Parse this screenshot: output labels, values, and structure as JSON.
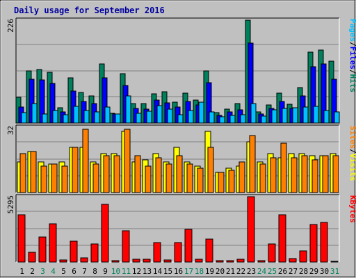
{
  "chart_data": {
    "type": "bar",
    "title": "Daily usage for September 2016",
    "x": [
      "1",
      "2",
      "3",
      "4",
      "5",
      "6",
      "7",
      "8",
      "9",
      "10",
      "11",
      "12",
      "13",
      "14",
      "15",
      "16",
      "17",
      "18",
      "19",
      "20",
      "21",
      "22",
      "23",
      "24",
      "25",
      "26",
      "27",
      "28",
      "29",
      "30",
      "31"
    ],
    "weekend_days": [
      "3",
      "4",
      "10",
      "11",
      "17",
      "18",
      "24",
      "25",
      "31"
    ],
    "colors": {
      "hits": "#00805c",
      "files": "#0000ff",
      "pages": "#00c0ff",
      "visits": "#ffff00",
      "sites": "#ff8000",
      "kbytes": "#ff0000",
      "weekday_label": "#000000",
      "weekend_label": "#00805c"
    },
    "panels": [
      {
        "id": "hits-files-pages",
        "ymax_label": "226",
        "ylim": [
          0,
          226
        ],
        "legend": [
          {
            "label": "Pages",
            "color": "#00c0ff"
          },
          {
            "label": "Files",
            "color": "#0000ff"
          },
          {
            "label": "Hits",
            "color": "#00805c"
          }
        ],
        "series": [
          {
            "name": "Hits",
            "color": "#00805c",
            "values": [
              57,
              115,
              118,
              112,
              33,
              100,
              67,
              60,
              130,
              21,
              108,
              43,
              43,
              64,
              68,
              46,
              66,
              50,
              115,
              23,
              30,
              42,
              226,
              25,
              40,
              66,
              41,
              78,
              155,
              160,
              136
            ]
          },
          {
            "name": "Files",
            "color": "#0000ff",
            "values": [
              35,
              96,
              95,
              87,
              25,
              70,
              48,
              42,
              99,
              20,
              82,
              32,
              30,
              50,
              45,
              35,
              48,
              39,
              88,
              17,
              24,
              29,
              175,
              20,
              32,
              48,
              32,
              60,
              123,
              130,
              96
            ]
          },
          {
            "name": "Pages",
            "color": "#00c0ff",
            "values": [
              23,
              42,
              20,
              28,
              18,
              37,
              27,
              24,
              35,
              20,
              60,
              21,
              26,
              38,
              30,
              19,
              28,
              46,
              24,
              13,
              17,
              18,
              43,
              15,
              29,
              32,
              33,
              35,
              36,
              28,
              24
            ]
          }
        ]
      },
      {
        "id": "visits-sites",
        "ymax_label": "32",
        "ylim": [
          0,
          32
        ],
        "legend": [
          {
            "label": "Sites",
            "color": "#ff8000"
          },
          {
            "label": "Visits",
            "color": "#ffff00"
          }
        ],
        "series": [
          {
            "name": "Visits",
            "color": "#ffff00",
            "values": [
              15,
              20,
              15,
              14,
              15,
              22,
              22,
              15,
              19,
              19,
              30,
              15,
              16,
              19,
              15,
              22,
              15,
              13,
              30,
              10,
              12,
              13,
              25,
              15,
              19,
              17,
              19,
              19,
              18,
              18,
              19
            ]
          },
          {
            "name": "Sites",
            "color": "#ff8000",
            "values": [
              19,
              20,
              13,
              14,
              13,
              22,
              31,
              14,
              18,
              18,
              31,
              18,
              13,
              17,
              14,
              18,
              14,
              12,
              22,
              10,
              11,
              15,
              28,
              14,
              17,
              24,
              17,
              18,
              16,
              18,
              18
            ]
          }
        ]
      },
      {
        "id": "kbytes",
        "ymax_label": "5295",
        "ylim": [
          0,
          5295
        ],
        "legend": [
          {
            "label": "KBytes",
            "color": "#ff0000"
          }
        ],
        "series": [
          {
            "name": "KBytes",
            "color": "#ff0000",
            "values": [
              3810,
              780,
              2030,
              3110,
              190,
              1700,
              320,
              1480,
              4650,
              120,
              2520,
              220,
              200,
              1550,
              180,
              1570,
              2640,
              230,
              1840,
              110,
              90,
              200,
              5295,
              90,
              1450,
              3850,
              300,
              910,
              3060,
              3200,
              70
            ]
          }
        ]
      }
    ]
  }
}
